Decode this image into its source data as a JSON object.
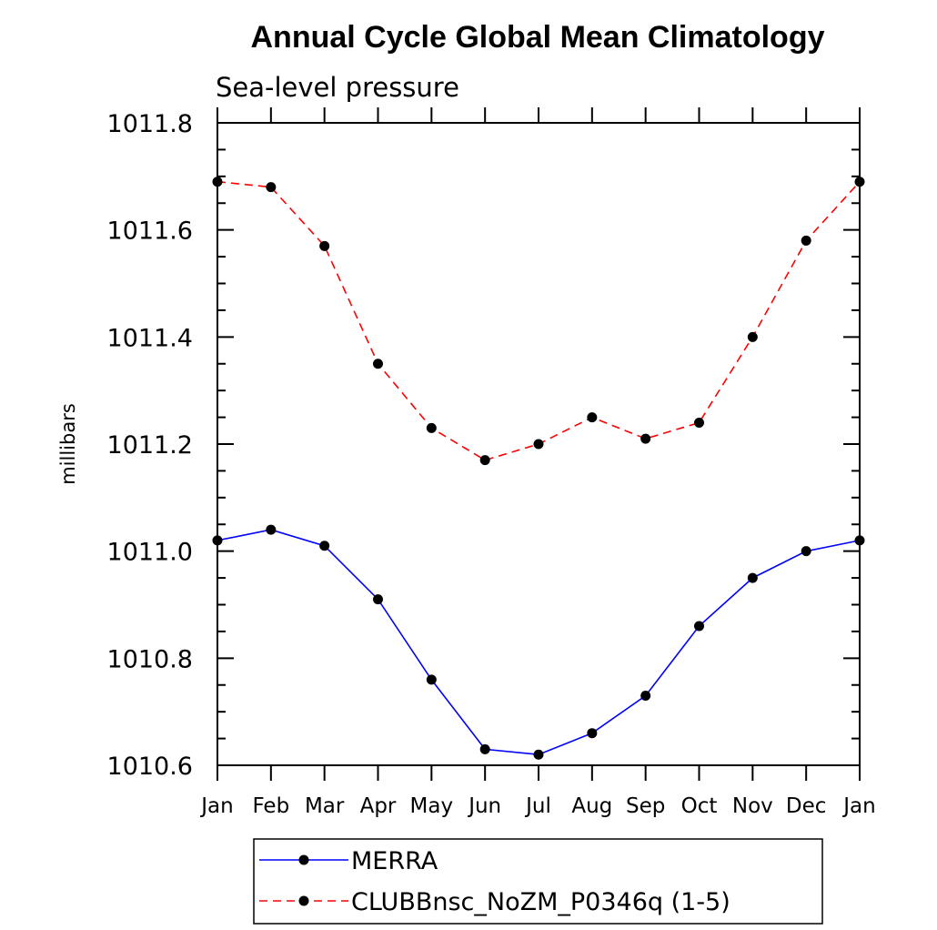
{
  "chart_data": {
    "type": "line",
    "title": "Annual Cycle Global Mean Climatology",
    "subtitle": "Sea-level pressure",
    "xlabel": "",
    "ylabel": "millibars",
    "categories": [
      "Jan",
      "Feb",
      "Mar",
      "Apr",
      "May",
      "Jun",
      "Jul",
      "Aug",
      "Sep",
      "Oct",
      "Nov",
      "Dec",
      "Jan"
    ],
    "ylim": [
      1010.6,
      1011.8
    ],
    "yticks": [
      "1010.6",
      "1010.8",
      "1011.0",
      "1011.2",
      "1011.4",
      "1011.6",
      "1011.8"
    ],
    "grid": false,
    "legend_position": "bottom",
    "series": [
      {
        "name": "MERRA",
        "color": "#0000ff",
        "line_style": "solid",
        "marker": "circle",
        "values": [
          1011.02,
          1011.04,
          1011.01,
          1010.91,
          1010.76,
          1010.63,
          1010.62,
          1010.66,
          1010.73,
          1010.86,
          1010.95,
          1011.0,
          1011.02
        ]
      },
      {
        "name": "CLUBBnsc_NoZM_P0346q (1-5)",
        "color": "#ff0000",
        "line_style": "dashed",
        "marker": "circle",
        "values": [
          1011.69,
          1011.68,
          1011.57,
          1011.35,
          1011.23,
          1011.17,
          1011.2,
          1011.25,
          1011.21,
          1011.24,
          1011.4,
          1011.58,
          1011.69
        ]
      }
    ]
  }
}
